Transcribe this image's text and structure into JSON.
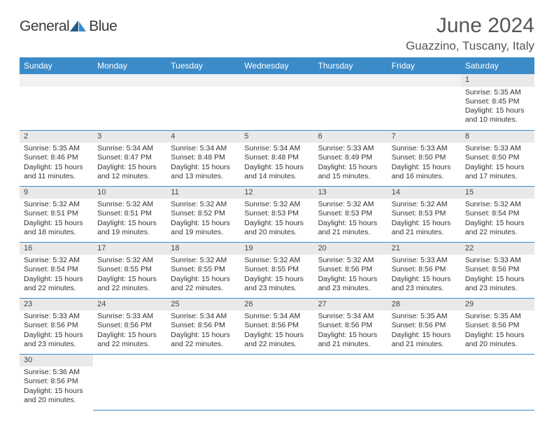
{
  "brand": {
    "word1": "General",
    "word2": "Blue"
  },
  "title": "June 2024",
  "location": "Guazzino, Tuscany, Italy",
  "colors": {
    "header_bg": "#3b8bc9",
    "header_text": "#ffffff",
    "daynum_bg": "#e9e9e9",
    "rule": "#3b8bc9",
    "brand_blue": "#2d7fc1",
    "text": "#333333"
  },
  "columns": [
    "Sunday",
    "Monday",
    "Tuesday",
    "Wednesday",
    "Thursday",
    "Friday",
    "Saturday"
  ],
  "weeks": [
    [
      null,
      null,
      null,
      null,
      null,
      null,
      {
        "n": "1",
        "sr": "Sunrise: 5:35 AM",
        "ss": "Sunset: 8:45 PM",
        "d1": "Daylight: 15 hours",
        "d2": "and 10 minutes."
      }
    ],
    [
      {
        "n": "2",
        "sr": "Sunrise: 5:35 AM",
        "ss": "Sunset: 8:46 PM",
        "d1": "Daylight: 15 hours",
        "d2": "and 11 minutes."
      },
      {
        "n": "3",
        "sr": "Sunrise: 5:34 AM",
        "ss": "Sunset: 8:47 PM",
        "d1": "Daylight: 15 hours",
        "d2": "and 12 minutes."
      },
      {
        "n": "4",
        "sr": "Sunrise: 5:34 AM",
        "ss": "Sunset: 8:48 PM",
        "d1": "Daylight: 15 hours",
        "d2": "and 13 minutes."
      },
      {
        "n": "5",
        "sr": "Sunrise: 5:34 AM",
        "ss": "Sunset: 8:48 PM",
        "d1": "Daylight: 15 hours",
        "d2": "and 14 minutes."
      },
      {
        "n": "6",
        "sr": "Sunrise: 5:33 AM",
        "ss": "Sunset: 8:49 PM",
        "d1": "Daylight: 15 hours",
        "d2": "and 15 minutes."
      },
      {
        "n": "7",
        "sr": "Sunrise: 5:33 AM",
        "ss": "Sunset: 8:50 PM",
        "d1": "Daylight: 15 hours",
        "d2": "and 16 minutes."
      },
      {
        "n": "8",
        "sr": "Sunrise: 5:33 AM",
        "ss": "Sunset: 8:50 PM",
        "d1": "Daylight: 15 hours",
        "d2": "and 17 minutes."
      }
    ],
    [
      {
        "n": "9",
        "sr": "Sunrise: 5:32 AM",
        "ss": "Sunset: 8:51 PM",
        "d1": "Daylight: 15 hours",
        "d2": "and 18 minutes."
      },
      {
        "n": "10",
        "sr": "Sunrise: 5:32 AM",
        "ss": "Sunset: 8:51 PM",
        "d1": "Daylight: 15 hours",
        "d2": "and 19 minutes."
      },
      {
        "n": "11",
        "sr": "Sunrise: 5:32 AM",
        "ss": "Sunset: 8:52 PM",
        "d1": "Daylight: 15 hours",
        "d2": "and 19 minutes."
      },
      {
        "n": "12",
        "sr": "Sunrise: 5:32 AM",
        "ss": "Sunset: 8:53 PM",
        "d1": "Daylight: 15 hours",
        "d2": "and 20 minutes."
      },
      {
        "n": "13",
        "sr": "Sunrise: 5:32 AM",
        "ss": "Sunset: 8:53 PM",
        "d1": "Daylight: 15 hours",
        "d2": "and 21 minutes."
      },
      {
        "n": "14",
        "sr": "Sunrise: 5:32 AM",
        "ss": "Sunset: 8:53 PM",
        "d1": "Daylight: 15 hours",
        "d2": "and 21 minutes."
      },
      {
        "n": "15",
        "sr": "Sunrise: 5:32 AM",
        "ss": "Sunset: 8:54 PM",
        "d1": "Daylight: 15 hours",
        "d2": "and 22 minutes."
      }
    ],
    [
      {
        "n": "16",
        "sr": "Sunrise: 5:32 AM",
        "ss": "Sunset: 8:54 PM",
        "d1": "Daylight: 15 hours",
        "d2": "and 22 minutes."
      },
      {
        "n": "17",
        "sr": "Sunrise: 5:32 AM",
        "ss": "Sunset: 8:55 PM",
        "d1": "Daylight: 15 hours",
        "d2": "and 22 minutes."
      },
      {
        "n": "18",
        "sr": "Sunrise: 5:32 AM",
        "ss": "Sunset: 8:55 PM",
        "d1": "Daylight: 15 hours",
        "d2": "and 22 minutes."
      },
      {
        "n": "19",
        "sr": "Sunrise: 5:32 AM",
        "ss": "Sunset: 8:55 PM",
        "d1": "Daylight: 15 hours",
        "d2": "and 23 minutes."
      },
      {
        "n": "20",
        "sr": "Sunrise: 5:32 AM",
        "ss": "Sunset: 8:56 PM",
        "d1": "Daylight: 15 hours",
        "d2": "and 23 minutes."
      },
      {
        "n": "21",
        "sr": "Sunrise: 5:33 AM",
        "ss": "Sunset: 8:56 PM",
        "d1": "Daylight: 15 hours",
        "d2": "and 23 minutes."
      },
      {
        "n": "22",
        "sr": "Sunrise: 5:33 AM",
        "ss": "Sunset: 8:56 PM",
        "d1": "Daylight: 15 hours",
        "d2": "and 23 minutes."
      }
    ],
    [
      {
        "n": "23",
        "sr": "Sunrise: 5:33 AM",
        "ss": "Sunset: 8:56 PM",
        "d1": "Daylight: 15 hours",
        "d2": "and 23 minutes."
      },
      {
        "n": "24",
        "sr": "Sunrise: 5:33 AM",
        "ss": "Sunset: 8:56 PM",
        "d1": "Daylight: 15 hours",
        "d2": "and 22 minutes."
      },
      {
        "n": "25",
        "sr": "Sunrise: 5:34 AM",
        "ss": "Sunset: 8:56 PM",
        "d1": "Daylight: 15 hours",
        "d2": "and 22 minutes."
      },
      {
        "n": "26",
        "sr": "Sunrise: 5:34 AM",
        "ss": "Sunset: 8:56 PM",
        "d1": "Daylight: 15 hours",
        "d2": "and 22 minutes."
      },
      {
        "n": "27",
        "sr": "Sunrise: 5:34 AM",
        "ss": "Sunset: 8:56 PM",
        "d1": "Daylight: 15 hours",
        "d2": "and 21 minutes."
      },
      {
        "n": "28",
        "sr": "Sunrise: 5:35 AM",
        "ss": "Sunset: 8:56 PM",
        "d1": "Daylight: 15 hours",
        "d2": "and 21 minutes."
      },
      {
        "n": "29",
        "sr": "Sunrise: 5:35 AM",
        "ss": "Sunset: 8:56 PM",
        "d1": "Daylight: 15 hours",
        "d2": "and 20 minutes."
      }
    ],
    [
      {
        "n": "30",
        "sr": "Sunrise: 5:36 AM",
        "ss": "Sunset: 8:56 PM",
        "d1": "Daylight: 15 hours",
        "d2": "and 20 minutes."
      },
      null,
      null,
      null,
      null,
      null,
      null
    ]
  ]
}
